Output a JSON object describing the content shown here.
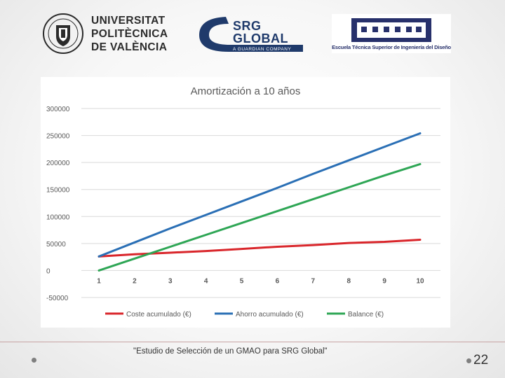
{
  "logos": {
    "upv": {
      "lines": [
        "UNIVERSITAT",
        "POLITÈCNICA",
        "DE VALÈNCIA"
      ]
    },
    "srg": {
      "name_line1": "SRG",
      "name_line2": "GLOBAL",
      "tagline": "A GUARDIAN COMPANY"
    },
    "etsid": {
      "text": "Escuela Técnica Superior de Ingeniería del Diseño"
    }
  },
  "colors": {
    "coste": "#d9262b",
    "ahorro": "#2a6fb5",
    "balance": "#2ea655",
    "grid": "#d9d9d9",
    "axis_text": "#595959"
  },
  "chart_data": {
    "type": "line",
    "title": "Amortización a 10 años",
    "categories": [
      "1",
      "2",
      "3",
      "4",
      "5",
      "6",
      "7",
      "8",
      "9",
      "10"
    ],
    "ylim": [
      -50000,
      300000
    ],
    "yticks": [
      300000,
      250000,
      200000,
      150000,
      100000,
      50000,
      0,
      -50000
    ],
    "ytick_labels": [
      "300000",
      "250000",
      "200000",
      "150000",
      "100000",
      "50000",
      "0",
      "-50000"
    ],
    "xlabel": "",
    "ylabel": "",
    "legend_position": "bottom",
    "grid": true,
    "series": [
      {
        "name": "Coste acumulado (€)",
        "color_key": "coste",
        "values": [
          26000,
          30000,
          33000,
          36000,
          40000,
          44000,
          47000,
          51000,
          53000,
          57000
        ]
      },
      {
        "name": "Ahorro acumulado (€)",
        "color_key": "ahorro",
        "values": [
          26000,
          52000,
          78000,
          103000,
          128000,
          153000,
          179000,
          204000,
          229000,
          254000
        ]
      },
      {
        "name": "Balance (€)",
        "color_key": "balance",
        "values": [
          0,
          22000,
          44000,
          66000,
          88000,
          110000,
          132000,
          154000,
          176000,
          197000
        ]
      }
    ]
  },
  "footer": {
    "caption": "\"Estudio de Selección de un GMAO para SRG Global\"",
    "page_number": "22"
  }
}
